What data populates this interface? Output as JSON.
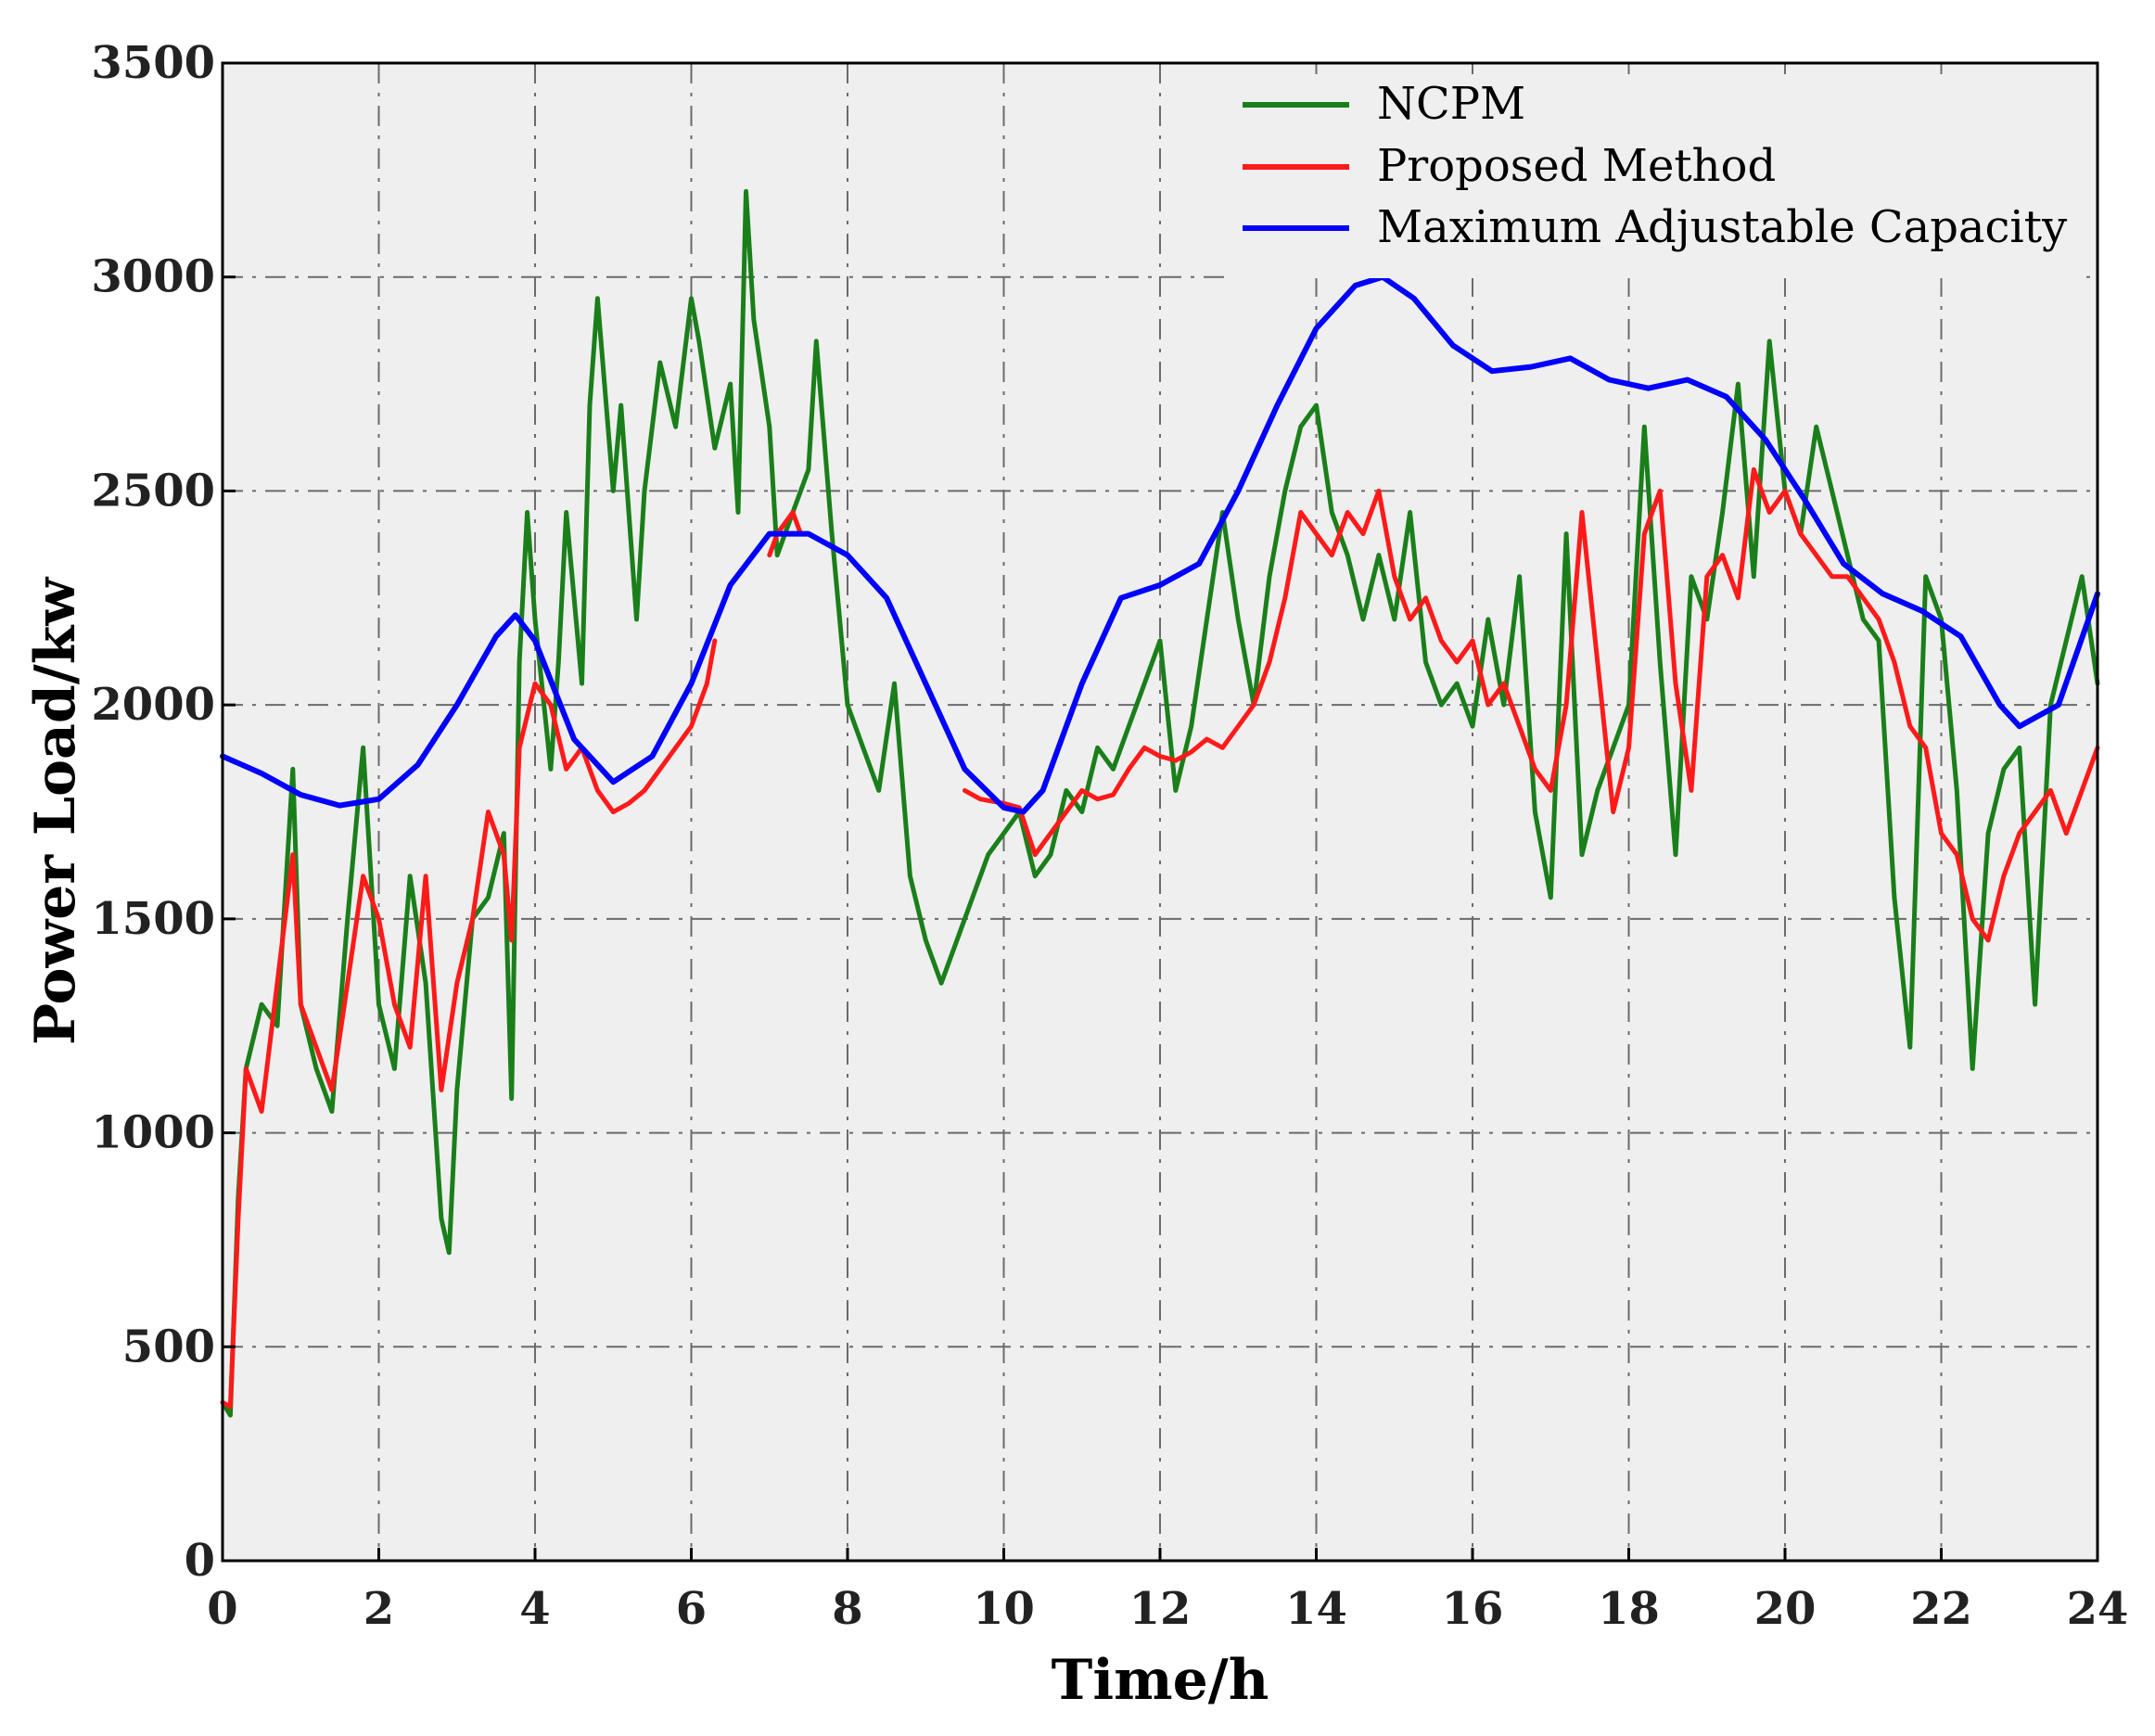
{
  "chart_data": {
    "type": "line",
    "xlabel": "Time/h",
    "ylabel": "Power Load/kw",
    "xlim": [
      0,
      24
    ],
    "ylim": [
      0,
      3500
    ],
    "xticks": [
      0,
      2,
      4,
      6,
      8,
      10,
      12,
      14,
      16,
      18,
      20,
      22,
      24
    ],
    "yticks": [
      0,
      500,
      1000,
      1500,
      2000,
      2500,
      3000,
      3500
    ],
    "grid": true,
    "legend_position": "top-right",
    "background": "#efefef",
    "series": [
      {
        "name": "NCPM",
        "color": "#1a7f1a",
        "x": [
          0,
          0.1,
          0.2,
          0.3,
          0.5,
          0.7,
          0.9,
          1.0,
          1.2,
          1.4,
          1.6,
          1.8,
          1.9,
          2.0,
          2.2,
          2.4,
          2.6,
          2.8,
          2.9,
          3.0,
          3.2,
          3.4,
          3.6,
          3.7,
          3.8,
          3.9,
          4.0,
          4.2,
          4.3,
          4.4,
          4.6,
          4.7,
          4.8,
          5.0,
          5.1,
          5.3,
          5.4,
          5.6,
          5.8,
          6.0,
          6.1,
          6.3,
          6.5,
          6.6,
          6.7,
          6.8,
          7.0,
          7.1,
          7.3,
          7.5,
          7.6,
          7.8,
          8.0,
          8.2,
          8.4,
          8.6,
          8.8,
          9.0,
          9.2,
          9.4,
          9.6,
          9.8,
          10.0,
          10.2,
          10.4,
          10.6,
          10.8,
          11.0,
          11.2,
          11.4,
          11.6,
          11.8,
          12.0,
          12.2,
          12.4,
          12.6,
          12.8,
          13.0,
          13.2,
          13.4,
          13.6,
          13.8,
          14.0,
          14.2,
          14.4,
          14.6,
          14.8,
          15.0,
          15.2,
          15.4,
          15.6,
          15.8,
          16.0,
          16.2,
          16.4,
          16.6,
          16.8,
          17.0,
          17.2,
          17.4,
          17.6,
          17.8,
          18.0,
          18.2,
          18.4,
          18.6,
          18.8,
          19.0,
          19.2,
          19.4,
          19.6,
          19.8,
          20.0,
          20.2,
          20.4,
          20.6,
          20.8,
          21.0,
          21.2,
          21.4,
          21.6,
          21.8,
          22.0,
          22.2,
          22.4,
          22.6,
          22.8,
          23.0,
          23.2,
          23.4,
          23.6,
          23.8,
          24.0
        ],
        "y": [
          370,
          340,
          850,
          1150,
          1300,
          1250,
          1850,
          1300,
          1150,
          1050,
          1500,
          1900,
          1600,
          1300,
          1150,
          1600,
          1350,
          800,
          720,
          1100,
          1500,
          1550,
          1700,
          1080,
          2100,
          2450,
          2200,
          1850,
          2100,
          2450,
          2050,
          2700,
          2950,
          2500,
          2700,
          2200,
          2500,
          2800,
          2650,
          2950,
          2850,
          2600,
          2750,
          2450,
          3200,
          2900,
          2650,
          2350,
          2450,
          2550,
          2850,
          2400,
          2000,
          1900,
          1800,
          2050,
          1600,
          1450,
          1350,
          1450,
          1550,
          1650,
          1700,
          1750,
          1600,
          1650,
          1800,
          1750,
          1900,
          1850,
          1950,
          2050,
          2150,
          1800,
          1950,
          2200,
          2450,
          2200,
          2000,
          2300,
          2500,
          2650,
          2700,
          2450,
          2350,
          2200,
          2350,
          2200,
          2450,
          2100,
          2000,
          2050,
          1950,
          2200,
          2000,
          2300,
          1750,
          1550,
          2400,
          1650,
          1800,
          1900,
          2000,
          2650,
          2100,
          1650,
          2300,
          2200,
          2450,
          2750,
          2300,
          2850,
          2500,
          2400,
          2650,
          2500,
          2350,
          2200,
          2150,
          1550,
          1200,
          2300,
          2200,
          1800,
          1150,
          1700,
          1850,
          1900,
          1300,
          2000,
          2150,
          2300,
          2050
        ]
      },
      {
        "name": "Proposed Method",
        "color": "#ff1a1a",
        "x": [
          0,
          0.1,
          0.2,
          0.3,
          0.5,
          0.7,
          0.9,
          1.0,
          1.2,
          1.4,
          1.6,
          1.8,
          2.0,
          2.2,
          2.4,
          2.6,
          2.8,
          3.0,
          3.2,
          3.4,
          3.6,
          3.7,
          3.8,
          4.0,
          4.2,
          4.4,
          4.6,
          4.8,
          5.0,
          5.2,
          5.4,
          5.6,
          5.8,
          6.0,
          6.2,
          6.3,
          null,
          7.0,
          7.1,
          7.3,
          7.4,
          null,
          9.5,
          9.7,
          10.0,
          10.2,
          10.4,
          10.6,
          10.8,
          11.0,
          11.2,
          11.4,
          11.6,
          11.8,
          12.0,
          12.2,
          12.4,
          12.6,
          12.8,
          13.0,
          13.2,
          13.4,
          13.6,
          13.8,
          14.0,
          14.2,
          14.4,
          14.6,
          14.8,
          15.0,
          15.2,
          15.4,
          15.6,
          15.8,
          16.0,
          16.2,
          16.4,
          16.6,
          16.8,
          17.0,
          17.2,
          17.4,
          17.6,
          17.8,
          18.0,
          18.2,
          18.4,
          18.6,
          18.8,
          19.0,
          19.2,
          19.4,
          19.6,
          19.8,
          20.0,
          20.2,
          20.4,
          20.6,
          20.8,
          21.0,
          21.2,
          21.4,
          21.6,
          21.8,
          22.0,
          22.2,
          22.4,
          22.6,
          22.8,
          23.0,
          23.2,
          23.4,
          23.6,
          23.8,
          24.0
        ],
        "y": [
          370,
          360,
          800,
          1150,
          1050,
          1350,
          1650,
          1300,
          1200,
          1100,
          1350,
          1600,
          1500,
          1300,
          1200,
          1600,
          1100,
          1350,
          1500,
          1750,
          1650,
          1450,
          1900,
          2050,
          2000,
          1850,
          1900,
          1800,
          1750,
          1770,
          1800,
          1850,
          1900,
          1950,
          2050,
          2150,
          null,
          2350,
          2400,
          2450,
          2400,
          null,
          1800,
          1780,
          1770,
          1760,
          1650,
          1700,
          1750,
          1800,
          1780,
          1790,
          1850,
          1900,
          1880,
          1870,
          1890,
          1920,
          1900,
          1950,
          2000,
          2100,
          2250,
          2450,
          2400,
          2350,
          2450,
          2400,
          2500,
          2300,
          2200,
          2250,
          2150,
          2100,
          2150,
          2000,
          2050,
          1950,
          1850,
          1800,
          2000,
          2450,
          2100,
          1750,
          1900,
          2400,
          2500,
          2050,
          1800,
          2300,
          2350,
          2250,
          2550,
          2450,
          2500,
          2400,
          2350,
          2300,
          2300,
          2250,
          2200,
          2100,
          1950,
          1900,
          1700,
          1650,
          1500,
          1450,
          1600,
          1700,
          1750,
          1800,
          1700,
          1800,
          1900
        ]
      },
      {
        "name": "Maximum Adjustable Capacity",
        "color": "#0000ff",
        "x": [
          0,
          0.5,
          1.0,
          1.5,
          2.0,
          2.5,
          3.0,
          3.5,
          3.75,
          4.0,
          4.5,
          5.0,
          5.5,
          6.0,
          6.5,
          7.0,
          7.5,
          8.0,
          8.5,
          9.0,
          9.5,
          10.0,
          10.25,
          10.5,
          11.0,
          11.5,
          12.0,
          12.5,
          13.0,
          13.5,
          14.0,
          14.5,
          14.85,
          15.25,
          15.75,
          16.25,
          16.75,
          17.25,
          17.75,
          18.25,
          18.75,
          19.25,
          19.75,
          20.25,
          20.75,
          21.25,
          21.75,
          22.25,
          22.75,
          23.0,
          23.5,
          24.0
        ],
        "y": [
          1880,
          1840,
          1790,
          1765,
          1780,
          1860,
          2000,
          2160,
          2210,
          2150,
          1920,
          1820,
          1880,
          2050,
          2280,
          2400,
          2400,
          2350,
          2250,
          2050,
          1850,
          1760,
          1750,
          1800,
          2050,
          2250,
          2280,
          2330,
          2500,
          2700,
          2880,
          2980,
          3000,
          2950,
          2840,
          2780,
          2790,
          2810,
          2760,
          2740,
          2760,
          2720,
          2620,
          2480,
          2330,
          2260,
          2220,
          2160,
          2000,
          1950,
          2000,
          2260
        ]
      }
    ]
  }
}
